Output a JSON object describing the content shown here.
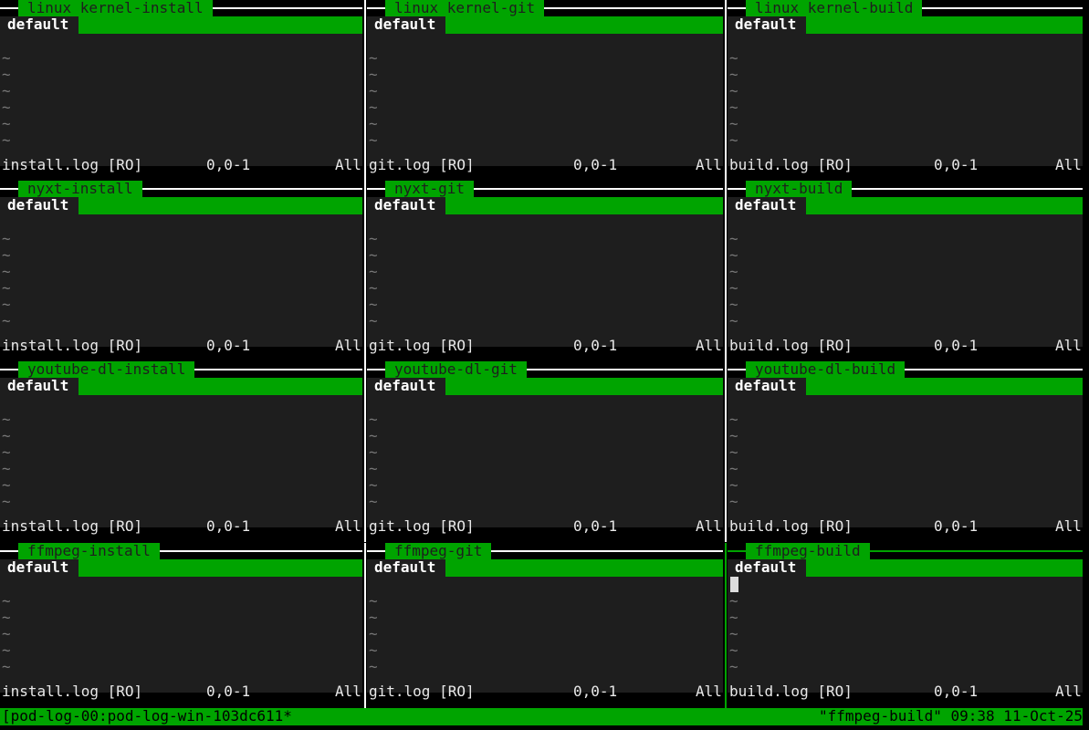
{
  "panes": [
    {
      "title": "linux kernel-install",
      "tab": "default",
      "file": "install.log [RO]",
      "position": "0,0-1",
      "scroll": "All"
    },
    {
      "title": "linux kernel-git",
      "tab": "default",
      "file": "git.log [RO]",
      "position": "0,0-1",
      "scroll": "All"
    },
    {
      "title": "linux kernel-build",
      "tab": "default",
      "file": "build.log [RO]",
      "position": "0,0-1",
      "scroll": "All"
    },
    {
      "title": "nyxt-install",
      "tab": "default",
      "file": "install.log [RO]",
      "position": "0,0-1",
      "scroll": "All"
    },
    {
      "title": "nyxt-git",
      "tab": "default",
      "file": "git.log [RO]",
      "position": "0,0-1",
      "scroll": "All"
    },
    {
      "title": "nyxt-build",
      "tab": "default",
      "file": "build.log [RO]",
      "position": "0,0-1",
      "scroll": "All"
    },
    {
      "title": "youtube-dl-install",
      "tab": "default",
      "file": "install.log [RO]",
      "position": "0,0-1",
      "scroll": "All"
    },
    {
      "title": "youtube-dl-git",
      "tab": "default",
      "file": "git.log [RO]",
      "position": "0,0-1",
      "scroll": "All"
    },
    {
      "title": "youtube-dl-build",
      "tab": "default",
      "file": "build.log [RO]",
      "position": "0,0-1",
      "scroll": "All"
    },
    {
      "title": "ffmpeg-install",
      "tab": "default",
      "file": "install.log [RO]",
      "position": "0,0-1",
      "scroll": "All"
    },
    {
      "title": "ffmpeg-git",
      "tab": "default",
      "file": "git.log [RO]",
      "position": "0,0-1",
      "scroll": "All"
    },
    {
      "title": "ffmpeg-build",
      "tab": "default",
      "file": "build.log [RO]",
      "position": "0,0-1",
      "scroll": "All"
    }
  ],
  "empty_line_marker": "~",
  "status_bar": {
    "session": "[pod-log-00:pod-log-win-103dc611*",
    "right": "\"ffmpeg-build\" 09:38 11-Oct-25"
  }
}
